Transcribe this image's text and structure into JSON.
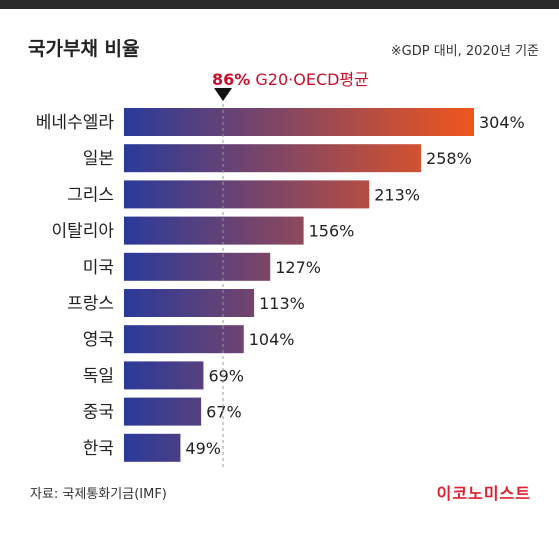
{
  "title": "국가부채 비율",
  "basis_note": "※GDP 대비, 2020년 기준",
  "average": {
    "value_text": "86%",
    "label": "G20·OECD평균"
  },
  "source": "자료: 국제통화기금(IMF)",
  "brand": "이코노미스트",
  "colors": {
    "bar_start": "#2a3a9a",
    "bar_end": "#f0561e",
    "accent": "#c8102e"
  },
  "chart_data": {
    "type": "bar",
    "orientation": "horizontal",
    "title": "국가부채 비율",
    "categories": [
      "베네수엘라",
      "일본",
      "그리스",
      "이탈리아",
      "미국",
      "프랑스",
      "영국",
      "독일",
      "중국",
      "한국"
    ],
    "values": [
      304,
      258,
      213,
      156,
      127,
      113,
      104,
      69,
      67,
      49
    ],
    "value_labels": [
      "304%",
      "258%",
      "213%",
      "156%",
      "127%",
      "113%",
      "104%",
      "69%",
      "67%",
      "49%"
    ],
    "unit": "%",
    "reference_line": {
      "value": 86,
      "label": "G20·OECD평균"
    },
    "xlim": [
      0,
      304
    ],
    "grid": false,
    "legend": "none"
  }
}
